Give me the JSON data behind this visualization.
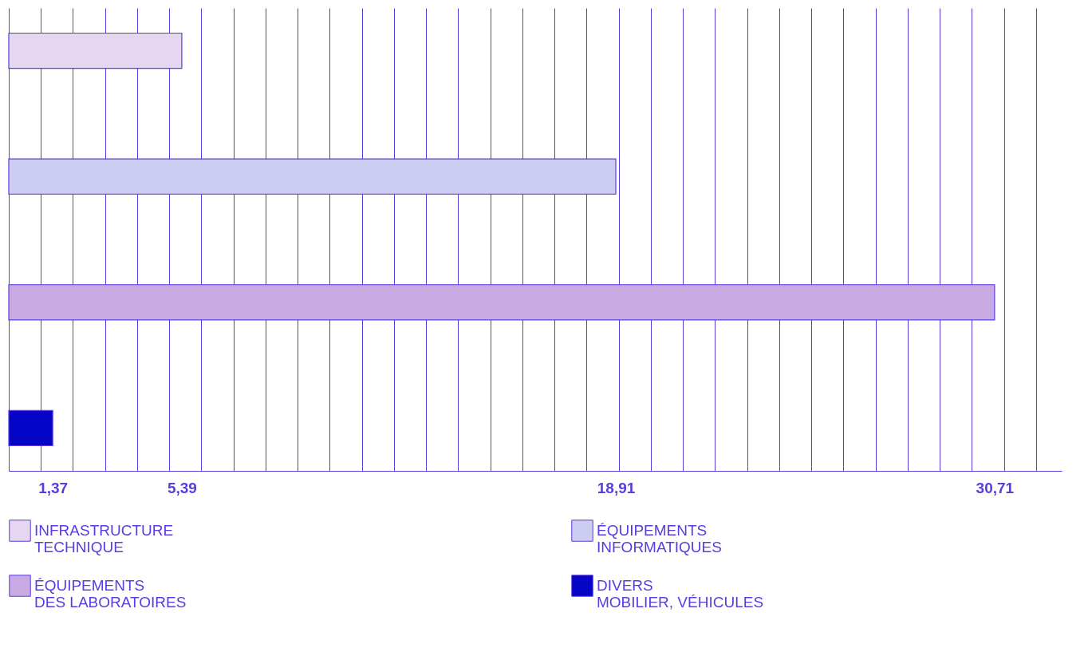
{
  "chart_data": {
    "type": "bar",
    "orientation": "horizontal",
    "categories": [
      null,
      null,
      null,
      null
    ],
    "series": [
      {
        "name": "INFRASTRUCTURE TECHNIQUE",
        "color": "#e6d6f2",
        "values": [
          5.39,
          null,
          null,
          null
        ]
      },
      {
        "name": "ÉQUIPEMENTS INFORMATIQUES",
        "color": "#cccdf0",
        "values": [
          null,
          18.91,
          null,
          null
        ]
      },
      {
        "name": "ÉQUIPEMENTS DES LABORATOIRES",
        "color": "#c9a9e2",
        "values": [
          null,
          null,
          30.71,
          null
        ]
      },
      {
        "name": "DIVERS MOBILIER, VÉHICULES",
        "color": "#0505c8",
        "values": [
          null,
          null,
          null,
          1.37
        ]
      }
    ],
    "xlim": [
      0,
      32.8
    ],
    "xticks": [
      {
        "value": 0,
        "label": null
      },
      {
        "value": 1,
        "label": null
      },
      {
        "value": 1.37,
        "label": "1,37"
      },
      {
        "value": 2,
        "label": null
      },
      {
        "value": 3,
        "label": null
      },
      {
        "value": 4,
        "label": null
      },
      {
        "value": 5,
        "label": null
      },
      {
        "value": 5.39,
        "label": "5,39"
      },
      {
        "value": 6,
        "label": null
      },
      {
        "value": 7,
        "label": null
      },
      {
        "value": 8,
        "label": null
      },
      {
        "value": 9,
        "label": null
      },
      {
        "value": 10,
        "label": null
      },
      {
        "value": 11,
        "label": null
      },
      {
        "value": 12,
        "label": null
      },
      {
        "value": 13,
        "label": null
      },
      {
        "value": 14,
        "label": null
      },
      {
        "value": 15,
        "label": null
      },
      {
        "value": 16,
        "label": null
      },
      {
        "value": 17,
        "label": null
      },
      {
        "value": 18,
        "label": null
      },
      {
        "value": 18.91,
        "label": "18,91"
      },
      {
        "value": 19,
        "label": null
      },
      {
        "value": 20,
        "label": null
      },
      {
        "value": 21,
        "label": null
      },
      {
        "value": 22,
        "label": null
      },
      {
        "value": 23,
        "label": null
      },
      {
        "value": 24,
        "label": null
      },
      {
        "value": 25,
        "label": null
      },
      {
        "value": 26,
        "label": null
      },
      {
        "value": 27,
        "label": null
      },
      {
        "value": 28,
        "label": null
      },
      {
        "value": 29,
        "label": null
      },
      {
        "value": 30,
        "label": null
      },
      {
        "value": 30.71,
        "label": "30,71"
      },
      {
        "value": 31,
        "label": null
      },
      {
        "value": 32,
        "label": null
      }
    ],
    "grid": "x",
    "tick_labels": "x",
    "legend": "bottom"
  }
}
